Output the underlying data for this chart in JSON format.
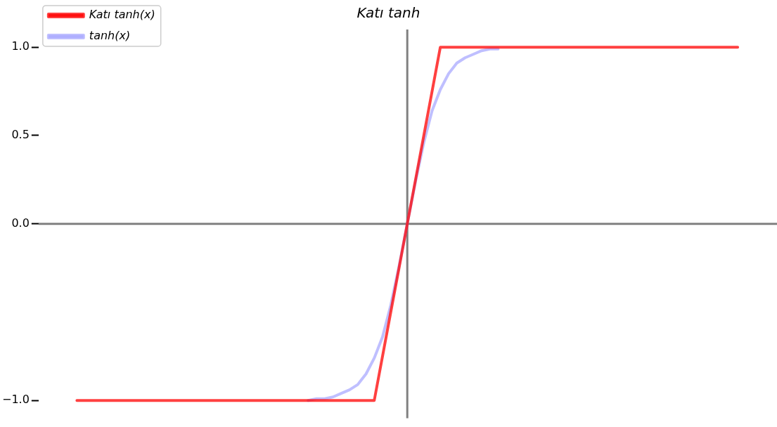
{
  "chart_data": {
    "type": "line",
    "title": "Katı tanh",
    "categories": [
      null,
      null,
      null,
      null,
      null,
      null,
      null,
      null,
      null,
      null,
      null,
      null,
      null,
      null,
      null,
      null,
      null,
      null,
      null,
      null,
      null,
      null,
      null,
      null,
      null,
      null,
      null,
      null,
      null,
      null,
      null,
      null,
      null,
      null,
      null,
      null,
      null,
      null,
      null,
      null,
      null,
      null,
      null,
      null,
      null,
      null,
      null,
      null,
      null,
      null,
      null,
      null,
      null,
      null,
      null,
      null,
      null,
      null,
      null,
      null,
      null,
      null,
      null,
      null,
      null,
      null,
      null,
      null,
      null,
      null,
      null,
      null,
      null,
      null,
      null,
      null,
      null,
      null,
      null,
      null,
      null
    ],
    "series": [
      {
        "name": "Katı tanh(x)",
        "color": "#ff0000",
        "values": [
          -1,
          -1,
          -1,
          -1,
          -1,
          -1,
          -1,
          -1,
          -1,
          -1,
          -1,
          -1,
          -1,
          -1,
          -1,
          -1,
          -1,
          -1,
          -1,
          -1,
          -1,
          -1,
          -1,
          -1,
          -1,
          -1,
          -1,
          -1,
          -1,
          -1,
          -1,
          -1,
          -1,
          -1,
          -1,
          -1,
          -1,
          -0.75,
          -0.5,
          -0.25,
          0,
          0.25,
          0.5,
          0.75,
          1,
          1,
          1,
          1,
          1,
          1,
          1,
          1,
          1,
          1,
          1,
          1,
          1,
          1,
          1,
          1,
          1,
          1,
          1,
          1,
          1,
          1,
          1,
          1,
          1,
          1,
          1,
          1,
          1,
          1,
          1,
          1,
          1,
          1,
          1,
          1,
          1
        ]
      },
      {
        "name": "tanh(x)",
        "color": "#aaaaff",
        "values": [
          null,
          null,
          null,
          null,
          null,
          null,
          null,
          null,
          null,
          null,
          null,
          null,
          null,
          null,
          null,
          null,
          null,
          null,
          null,
          null,
          null,
          null,
          null,
          null,
          null,
          null,
          null,
          null,
          -1,
          -0.99,
          -0.99,
          -0.98,
          -0.96,
          -0.94,
          -0.91,
          -0.85,
          -0.76,
          -0.64,
          -0.46,
          -0.24,
          0,
          0.24,
          0.46,
          0.64,
          0.76,
          0.85,
          0.91,
          0.94,
          0.96,
          0.98,
          0.99,
          0.99,
          null,
          null,
          null,
          null,
          null,
          null,
          null,
          null,
          null,
          null,
          null,
          null,
          null,
          null,
          null,
          null,
          null,
          null,
          null,
          null,
          null,
          null,
          null,
          null,
          null,
          null,
          null,
          null,
          null
        ]
      }
    ],
    "ylim": [
      -1.1,
      1.1
    ],
    "yticks": [
      {
        "value": -1,
        "label": "−1.0"
      },
      {
        "value": 0,
        "label": "0.0"
      },
      {
        "value": 0.5,
        "label": "0.5"
      },
      {
        "value": 1,
        "label": "1.0"
      }
    ],
    "ref_lines": [
      {
        "axis": "y",
        "value": 0,
        "color": "#808080"
      }
    ],
    "tick_labels": "y",
    "grid": false,
    "legend": "top left",
    "line_style": "solid"
  }
}
